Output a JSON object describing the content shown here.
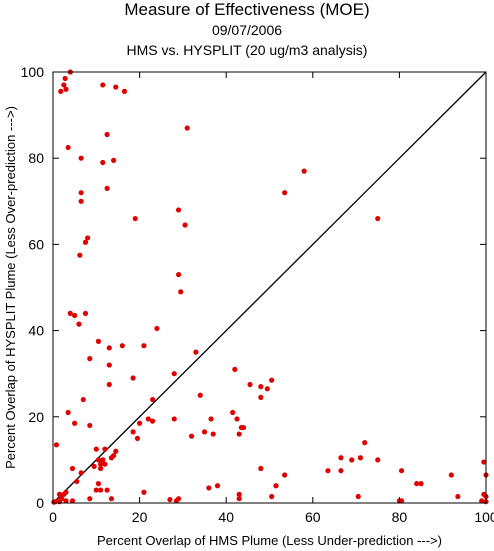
{
  "chart_data": {
    "type": "scatter",
    "title": "Measure of Effectiveness (MOE)",
    "subtitle_date": "09/07/2006",
    "subtitle_analysis": "HMS vs. HYSPLIT  (20 ug/m3 analysis)",
    "xlabel": "Percent Overlap of HMS Plume (Less Under-prediction --->)",
    "ylabel": "Percent Overlap of HYSPLIT Plume (Less Over-prediction --->)",
    "xlim": [
      0,
      100
    ],
    "ylim": [
      0,
      100
    ],
    "x_ticks": [
      0,
      20,
      40,
      60,
      80,
      100
    ],
    "y_ticks": [
      0,
      20,
      40,
      60,
      80,
      100
    ],
    "x_tick_labels": [
      "0",
      "20",
      "40",
      "60",
      "80",
      "100"
    ],
    "y_tick_labels": [
      "0",
      "20",
      "40",
      "60",
      "80",
      "100"
    ],
    "reference_line": {
      "from": [
        0,
        0
      ],
      "to": [
        100,
        100
      ]
    },
    "point_color": "#e00000",
    "line_color": "#000000",
    "grid": false,
    "points": [
      [
        4.0,
        100.0
      ],
      [
        2.8,
        98.5
      ],
      [
        2.5,
        97.0
      ],
      [
        3.0,
        96.0
      ],
      [
        1.8,
        95.5
      ],
      [
        11.5,
        97.0
      ],
      [
        14.5,
        96.5
      ],
      [
        16.5,
        95.5
      ],
      [
        12.5,
        85.5
      ],
      [
        3.5,
        82.5
      ],
      [
        31.0,
        87.0
      ],
      [
        6.5,
        80.0
      ],
      [
        11.5,
        79.0
      ],
      [
        14.0,
        79.5
      ],
      [
        12.5,
        73.0
      ],
      [
        6.5,
        72.0
      ],
      [
        6.5,
        70.0
      ],
      [
        58.0,
        77.0
      ],
      [
        53.5,
        72.0
      ],
      [
        75.0,
        66.0
      ],
      [
        19.0,
        66.0
      ],
      [
        29.0,
        68.0
      ],
      [
        30.5,
        64.5
      ],
      [
        8.0,
        61.5
      ],
      [
        7.5,
        60.5
      ],
      [
        6.2,
        57.5
      ],
      [
        29.0,
        53.0
      ],
      [
        29.5,
        49.0
      ],
      [
        4.0,
        44.0
      ],
      [
        5.0,
        43.5
      ],
      [
        7.5,
        44.0
      ],
      [
        6.0,
        41.5
      ],
      [
        24.0,
        40.5
      ],
      [
        10.5,
        37.5
      ],
      [
        16.0,
        36.5
      ],
      [
        21.0,
        36.5
      ],
      [
        13.0,
        36.0
      ],
      [
        33.0,
        35.0
      ],
      [
        8.5,
        33.5
      ],
      [
        13.0,
        32.0
      ],
      [
        18.5,
        29.0
      ],
      [
        28.0,
        30.0
      ],
      [
        42.0,
        31.0
      ],
      [
        45.5,
        27.5
      ],
      [
        48.0,
        27.0
      ],
      [
        50.5,
        28.5
      ],
      [
        49.5,
        26.5
      ],
      [
        48.0,
        24.5
      ],
      [
        34.0,
        25.0
      ],
      [
        13.0,
        27.5
      ],
      [
        7.0,
        24.0
      ],
      [
        23.0,
        24.0
      ],
      [
        22.0,
        19.5
      ],
      [
        23.0,
        19.0
      ],
      [
        28.0,
        19.5
      ],
      [
        41.5,
        21.0
      ],
      [
        42.5,
        19.5
      ],
      [
        43.5,
        17.5
      ],
      [
        44.0,
        17.5
      ],
      [
        35.0,
        16.5
      ],
      [
        37.0,
        16.0
      ],
      [
        43.0,
        16.0
      ],
      [
        32.0,
        15.5
      ],
      [
        36.5,
        19.5
      ],
      [
        18.5,
        16.5
      ],
      [
        19.5,
        15.0
      ],
      [
        20.0,
        18.5
      ],
      [
        8.5,
        18.0
      ],
      [
        5.0,
        18.5
      ],
      [
        3.5,
        21.0
      ],
      [
        0.8,
        13.5
      ],
      [
        10.0,
        12.5
      ],
      [
        12.0,
        12.5
      ],
      [
        14.5,
        12.0
      ],
      [
        14.0,
        11.0
      ],
      [
        13.5,
        10.5
      ],
      [
        10.5,
        10.0
      ],
      [
        11.5,
        10.0
      ],
      [
        11.0,
        9.0
      ],
      [
        11.0,
        8.0
      ],
      [
        9.5,
        8.5
      ],
      [
        12.0,
        9.0
      ],
      [
        4.5,
        8.0
      ],
      [
        6.5,
        7.0
      ],
      [
        10.5,
        4.5
      ],
      [
        10.0,
        3.0
      ],
      [
        11.0,
        3.0
      ],
      [
        12.5,
        3.0
      ],
      [
        5.5,
        5.0
      ],
      [
        13.5,
        1.0
      ],
      [
        8.5,
        1.0
      ],
      [
        4.5,
        0.5
      ],
      [
        3.0,
        0.5
      ],
      [
        2.5,
        2.0
      ],
      [
        3.0,
        2.5
      ],
      [
        1.5,
        2.0
      ],
      [
        2.0,
        1.0
      ],
      [
        1.0,
        0.5
      ],
      [
        0.5,
        0.3
      ],
      [
        0.2,
        0.2
      ],
      [
        1.5,
        0.3
      ],
      [
        21.0,
        2.5
      ],
      [
        27.0,
        0.8
      ],
      [
        28.5,
        0.5
      ],
      [
        29.0,
        1.0
      ],
      [
        36.0,
        3.5
      ],
      [
        38.0,
        4.0
      ],
      [
        43.0,
        2.0
      ],
      [
        43.0,
        1.0
      ],
      [
        48.0,
        8.0
      ],
      [
        51.5,
        4.0
      ],
      [
        50.5,
        1.5
      ],
      [
        53.5,
        6.5
      ],
      [
        63.5,
        7.5
      ],
      [
        66.5,
        7.5
      ],
      [
        66.5,
        10.5
      ],
      [
        69.0,
        10.0
      ],
      [
        71.0,
        10.5
      ],
      [
        72.0,
        14.0
      ],
      [
        75.0,
        10.0
      ],
      [
        70.5,
        1.5
      ],
      [
        80.0,
        0.5
      ],
      [
        80.5,
        0.5
      ],
      [
        80.5,
        7.5
      ],
      [
        84.0,
        4.5
      ],
      [
        85.0,
        4.5
      ],
      [
        92.0,
        6.5
      ],
      [
        93.5,
        1.5
      ],
      [
        99.5,
        9.5
      ],
      [
        100.0,
        6.5
      ],
      [
        99.5,
        2.0
      ],
      [
        100.0,
        1.5
      ],
      [
        99.0,
        0.5
      ],
      [
        100.0,
        0.3
      ]
    ]
  }
}
